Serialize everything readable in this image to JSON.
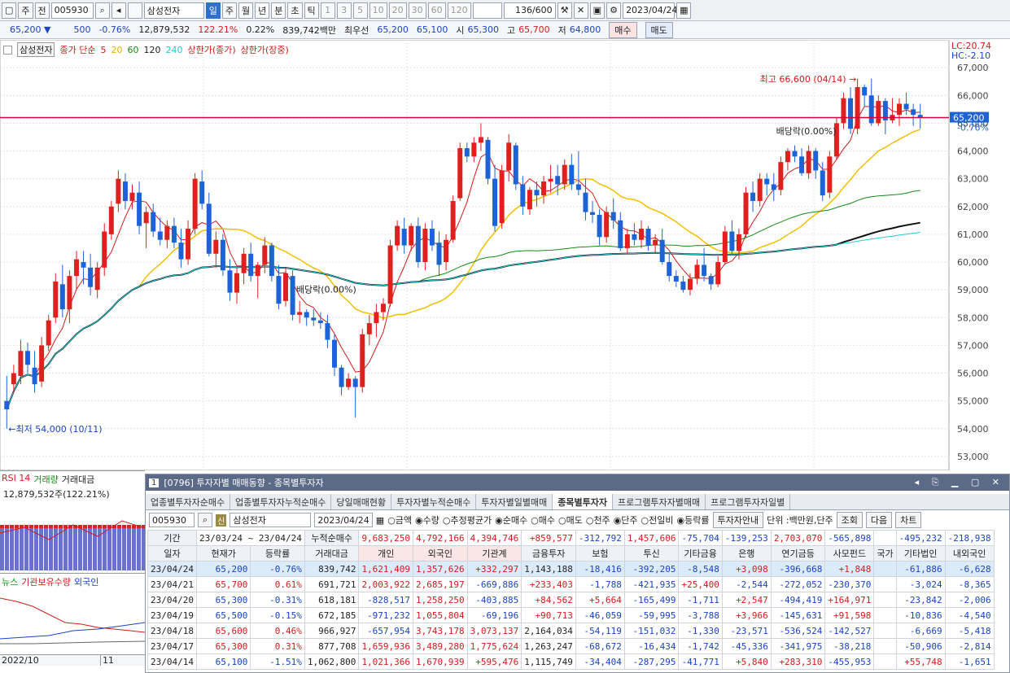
{
  "toolbar": {
    "mode": "주",
    "jeon": "전",
    "code": "005930",
    "shin": "신",
    "name": "삼성전자",
    "periods": [
      "일",
      "주",
      "월",
      "년",
      "분",
      "초",
      "틱"
    ],
    "ticks": [
      "1",
      "3",
      "5",
      "10",
      "20",
      "30",
      "60",
      "120"
    ],
    "count": "136",
    "count_total": "/600",
    "date": "2023/04/24"
  },
  "quote": {
    "price": "65,200 ▼",
    "change": "500",
    "rate": "-0.76%",
    "volume": "12,879,532",
    "vol_rate": "122.21%",
    "turnover": "0.22%",
    "amount": "839,742백만",
    "best_label": "최우선",
    "best_ask": "65,200",
    "best_bid": "65,100",
    "open_label": "시",
    "open": "65,300",
    "high_label": "고",
    "high": "65,700",
    "low_label": "저",
    "low": "64,800",
    "buy": "매수",
    "sell": "매도"
  },
  "legend": {
    "name": "삼성전자",
    "ma_label": "종가 단순",
    "ma5": "5",
    "ma20": "20",
    "ma60": "60",
    "ma120": "120",
    "ma240": "240",
    "upper1": "상한가(종가)",
    "upper2": "상한가(장중)",
    "lc": "LC:20.74",
    "hc": "HC:-2.10"
  },
  "chart_data": {
    "type": "candlestick",
    "y_axis": [
      "67,000",
      "66,000",
      "65,000",
      "64,000",
      "63,000",
      "62,000",
      "61,000",
      "60,000",
      "59,000",
      "58,000",
      "57,000",
      "56,000",
      "55,000",
      "54,000",
      "53,000"
    ],
    "ylim": [
      52500,
      68000
    ],
    "last_price": "65,200",
    "last_change": "-0.76%",
    "annotations": {
      "high": "최고 66,600 (04/14)",
      "low": "최저 54,000 (10/11)",
      "div1": "배당락(0.00%)",
      "div2": "배당락(0.00%)"
    },
    "ohlc": [
      [
        55000,
        55900,
        54000,
        54700
      ],
      [
        55600,
        56300,
        55300,
        56000
      ],
      [
        55900,
        57200,
        55600,
        56800
      ],
      [
        56800,
        57100,
        56000,
        56300
      ],
      [
        56200,
        56800,
        55300,
        55600
      ],
      [
        55700,
        57300,
        55500,
        57000
      ],
      [
        57000,
        58100,
        56800,
        57900
      ],
      [
        58000,
        59600,
        57800,
        59300
      ],
      [
        59200,
        59900,
        58000,
        58300
      ],
      [
        58300,
        59700,
        57800,
        59500
      ],
      [
        59500,
        60400,
        59000,
        60100
      ],
      [
        60000,
        60400,
        59200,
        59800
      ],
      [
        59800,
        60300,
        58800,
        59100
      ],
      [
        59000,
        60000,
        58700,
        59800
      ],
      [
        59800,
        61400,
        59500,
        61100
      ],
      [
        61000,
        62200,
        60800,
        62000
      ],
      [
        62100,
        63300,
        61800,
        63000
      ],
      [
        62900,
        63200,
        61900,
        62200
      ],
      [
        62200,
        62800,
        61900,
        62500
      ],
      [
        62500,
        62900,
        61000,
        61300
      ],
      [
        61400,
        62000,
        60500,
        61800
      ],
      [
        61800,
        62100,
        60900,
        61100
      ],
      [
        61100,
        61600,
        60600,
        60800
      ],
      [
        60800,
        61500,
        60500,
        61300
      ],
      [
        61300,
        61600,
        60500,
        60700
      ],
      [
        60700,
        61200,
        59800,
        60100
      ],
      [
        60100,
        61500,
        59900,
        61200
      ],
      [
        61200,
        63200,
        61000,
        63000
      ],
      [
        62900,
        63300,
        61900,
        62100
      ],
      [
        62100,
        62500,
        60200,
        60300
      ],
      [
        60300,
        61100,
        59800,
        60800
      ],
      [
        60800,
        61000,
        59500,
        59700
      ],
      [
        59700,
        60100,
        58600,
        58900
      ],
      [
        58900,
        59800,
        58500,
        59600
      ],
      [
        59600,
        60500,
        59200,
        60300
      ],
      [
        60300,
        60700,
        59300,
        59500
      ],
      [
        59500,
        60000,
        58700,
        59900
      ],
      [
        59900,
        60900,
        59600,
        60600
      ],
      [
        60600,
        60700,
        59300,
        59500
      ],
      [
        59500,
        59900,
        58300,
        58500
      ],
      [
        58600,
        59800,
        58400,
        59600
      ],
      [
        59500,
        59700,
        57900,
        58100
      ],
      [
        58100,
        58600,
        57800,
        58200
      ],
      [
        58200,
        58300,
        57700,
        58000
      ],
      [
        58000,
        58300,
        57700,
        57900
      ],
      [
        57900,
        58200,
        57600,
        57800
      ],
      [
        57800,
        58100,
        56900,
        57200
      ],
      [
        57200,
        57400,
        55900,
        56200
      ],
      [
        56200,
        56300,
        55200,
        55500
      ],
      [
        55500,
        56000,
        55400,
        55800
      ],
      [
        55800,
        55900,
        54400,
        55500
      ],
      [
        55500,
        57600,
        55300,
        57400
      ],
      [
        57400,
        58100,
        57000,
        57800
      ],
      [
        57800,
        58500,
        57300,
        58200
      ],
      [
        58200,
        58700,
        57900,
        58500
      ],
      [
        58500,
        60800,
        58400,
        60600
      ],
      [
        60600,
        61500,
        60400,
        61300
      ],
      [
        61200,
        61600,
        60300,
        60600
      ],
      [
        60600,
        61400,
        60400,
        61300
      ],
      [
        61300,
        61600,
        59800,
        60000
      ],
      [
        60000,
        61400,
        59700,
        61200
      ],
      [
        61200,
        61500,
        60400,
        60600
      ],
      [
        60700,
        61100,
        59500,
        59900
      ],
      [
        60000,
        61000,
        59700,
        60800
      ],
      [
        60800,
        62400,
        60700,
        62200
      ],
      [
        62300,
        64300,
        62200,
        64100
      ],
      [
        64100,
        64300,
        63600,
        63800
      ],
      [
        63800,
        64500,
        63600,
        64300
      ],
      [
        64300,
        65000,
        64000,
        64500
      ],
      [
        64400,
        64500,
        62800,
        63000
      ],
      [
        63000,
        63500,
        61100,
        61300
      ],
      [
        61400,
        63500,
        61200,
        63300
      ],
      [
        63300,
        64600,
        62900,
        64300
      ],
      [
        64200,
        64300,
        62600,
        62800
      ],
      [
        62800,
        63100,
        61700,
        62000
      ],
      [
        61900,
        62700,
        61700,
        62600
      ],
      [
        62600,
        62900,
        62000,
        62400
      ],
      [
        62400,
        63100,
        62100,
        62900
      ],
      [
        62900,
        63500,
        62500,
        63000
      ],
      [
        63100,
        63500,
        62400,
        62800
      ],
      [
        62800,
        63700,
        62600,
        63500
      ],
      [
        63500,
        63900,
        62600,
        62800
      ],
      [
        62800,
        64000,
        62400,
        62600
      ],
      [
        62500,
        63000,
        61500,
        61800
      ],
      [
        61800,
        62200,
        61400,
        61700
      ],
      [
        61700,
        61900,
        60600,
        60900
      ],
      [
        60900,
        62000,
        60700,
        61800
      ],
      [
        61800,
        62300,
        61200,
        61500
      ],
      [
        61500,
        61800,
        60400,
        60500
      ],
      [
        60500,
        61200,
        60300,
        61000
      ],
      [
        61000,
        61400,
        60600,
        60800
      ],
      [
        60800,
        61500,
        60500,
        61200
      ],
      [
        61200,
        61300,
        60400,
        60600
      ],
      [
        60600,
        61000,
        60300,
        60800
      ],
      [
        60800,
        61200,
        59900,
        60000
      ],
      [
        60000,
        60300,
        59300,
        59500
      ],
      [
        59500,
        59700,
        59100,
        59300
      ],
      [
        59300,
        59500,
        58900,
        59000
      ],
      [
        59000,
        59600,
        58800,
        59400
      ],
      [
        59400,
        60100,
        59200,
        59900
      ],
      [
        59900,
        60500,
        59300,
        59500
      ],
      [
        59500,
        59600,
        59000,
        59200
      ],
      [
        59200,
        60200,
        59100,
        60000
      ],
      [
        60000,
        61300,
        59900,
        61100
      ],
      [
        61100,
        61500,
        60300,
        60400
      ],
      [
        60400,
        61200,
        60100,
        61000
      ],
      [
        61000,
        62700,
        60900,
        62500
      ],
      [
        62500,
        62900,
        61800,
        62200
      ],
      [
        62200,
        63200,
        62000,
        63000
      ],
      [
        63000,
        63200,
        62400,
        62800
      ],
      [
        62800,
        63200,
        62200,
        62600
      ],
      [
        62600,
        63800,
        62400,
        63600
      ],
      [
        63600,
        64100,
        63300,
        64000
      ],
      [
        64000,
        64200,
        63600,
        63800
      ],
      [
        63800,
        64100,
        63100,
        63200
      ],
      [
        63200,
        64200,
        63000,
        64000
      ],
      [
        64000,
        64100,
        63000,
        63300
      ],
      [
        63300,
        63600,
        62200,
        62400
      ],
      [
        62500,
        64000,
        62300,
        63800
      ],
      [
        63800,
        65200,
        63700,
        65000
      ],
      [
        65000,
        66100,
        64800,
        65900
      ],
      [
        65900,
        66300,
        64600,
        64800
      ],
      [
        64800,
        66600,
        64600,
        66300
      ],
      [
        66300,
        66400,
        65600,
        66000
      ],
      [
        66000,
        66600,
        64900,
        65000
      ],
      [
        65000,
        66000,
        64900,
        65800
      ],
      [
        65800,
        65900,
        64600,
        65100
      ],
      [
        65100,
        65900,
        65000,
        65300
      ],
      [
        65300,
        65900,
        64900,
        65700
      ],
      [
        65700,
        66100,
        65300,
        65500
      ],
      [
        65500,
        65700,
        64900,
        65300
      ],
      [
        65300,
        65700,
        64800,
        65200
      ]
    ]
  },
  "lower": {
    "rsi": "RSI 14",
    "vol": "거래량",
    "amt": "거래대금",
    "volume": "12,879,532주(122.21%)",
    "news": "뉴스",
    "inst": "기관보유수량",
    "foreign": "외국인",
    "date1": "2022/10",
    "date2": "11"
  },
  "panel": {
    "num": "1",
    "title": "[0796] 투자자별 매매동향 - 종목별투자자",
    "tabs": [
      "업종별투자자순매수",
      "업종별투자자누적순매수",
      "당일매매현황",
      "투자자별누적순매수",
      "투자자별일별매매",
      "종목별투자자",
      "프로그램투자자별매매",
      "프로그램투자자일별"
    ],
    "code": "005930",
    "name": "삼성전자",
    "date": "2023/04/24",
    "opt1": [
      "금액",
      "수량",
      "추정평균가"
    ],
    "opt2": [
      "순매수",
      "매수",
      "매도"
    ],
    "opt3": [
      "천주",
      "단주"
    ],
    "opt4": [
      "전일비",
      "등락률"
    ],
    "guide": "투자자안내",
    "unit": "단위 :백만원,단주",
    "query": "조회",
    "next": "다음",
    "chart": "차트",
    "period_label": "기간",
    "from": "23/03/24",
    "to": "23/04/24",
    "cum_label": "누적순매수",
    "cum": [
      "9,683,250",
      "4,792,166",
      "4,394,746",
      "+859,577",
      "-312,792",
      "1,457,606",
      "-75,704",
      "-139,253",
      "2,703,070",
      "-565,898",
      "",
      "-495,232",
      "-218,938"
    ],
    "headers": [
      "일자",
      "현재가",
      "등락률",
      "거래대금",
      "개인",
      "외국인",
      "기관계",
      "금융투자",
      "보험",
      "투신",
      "기타금융",
      "은행",
      "연기금등",
      "사모펀드",
      "국가",
      "기타법인",
      "내외국인"
    ],
    "rows": [
      [
        "23/04/24",
        "65,200",
        "-0.76%",
        "839,742",
        "1,621,409",
        "1,357,626",
        "+332,297",
        "1,143,188",
        "-18,416",
        "-392,205",
        "-8,548",
        "+3,098",
        "-396,668",
        "+1,848",
        "",
        "-61,886",
        "-6,628"
      ],
      [
        "23/04/21",
        "65,700",
        "0.61%",
        "691,721",
        "2,003,922",
        "2,685,197",
        "-669,886",
        "+233,403",
        "-1,788",
        "-421,935",
        "+25,400",
        "-2,544",
        "-272,052",
        "-230,370",
        "",
        "-3,024",
        "-8,365"
      ],
      [
        "23/04/20",
        "65,300",
        "-0.31%",
        "618,181",
        "-828,517",
        "1,258,250",
        "-403,885",
        "+84,562",
        "+5,664",
        "-165,499",
        "-1,711",
        "+2,547",
        "-494,419",
        "+164,971",
        "",
        "-23,842",
        "-2,006"
      ],
      [
        "23/04/19",
        "65,500",
        "-0.15%",
        "672,185",
        "-971,232",
        "1,055,804",
        "-69,196",
        "+90,713",
        "-46,059",
        "-59,995",
        "-3,788",
        "+3,966",
        "-145,631",
        "+91,598",
        "",
        "-10,836",
        "-4,540"
      ],
      [
        "23/04/18",
        "65,600",
        "0.46%",
        "966,927",
        "-657,954",
        "3,743,178",
        "3,073,137",
        "2,164,034",
        "-54,119",
        "-151,032",
        "-1,330",
        "-23,571",
        "-536,524",
        "-142,527",
        "",
        "-6,669",
        "-5,418"
      ],
      [
        "23/04/17",
        "65,300",
        "0.31%",
        "877,708",
        "1,659,936",
        "3,489,280",
        "1,775,624",
        "1,263,247",
        "-68,672",
        "-16,434",
        "-1,742",
        "-45,336",
        "-341,975",
        "-38,218",
        "",
        "-50,906",
        "-2,814"
      ],
      [
        "23/04/14",
        "65,100",
        "-1.51%",
        "1,062,800",
        "1,021,366",
        "1,670,939",
        "+595,476",
        "1,115,749",
        "-34,404",
        "-287,295",
        "-41,771",
        "+5,840",
        "+283,310",
        "-455,953",
        "",
        "+55,748",
        "-1,651"
      ]
    ]
  }
}
